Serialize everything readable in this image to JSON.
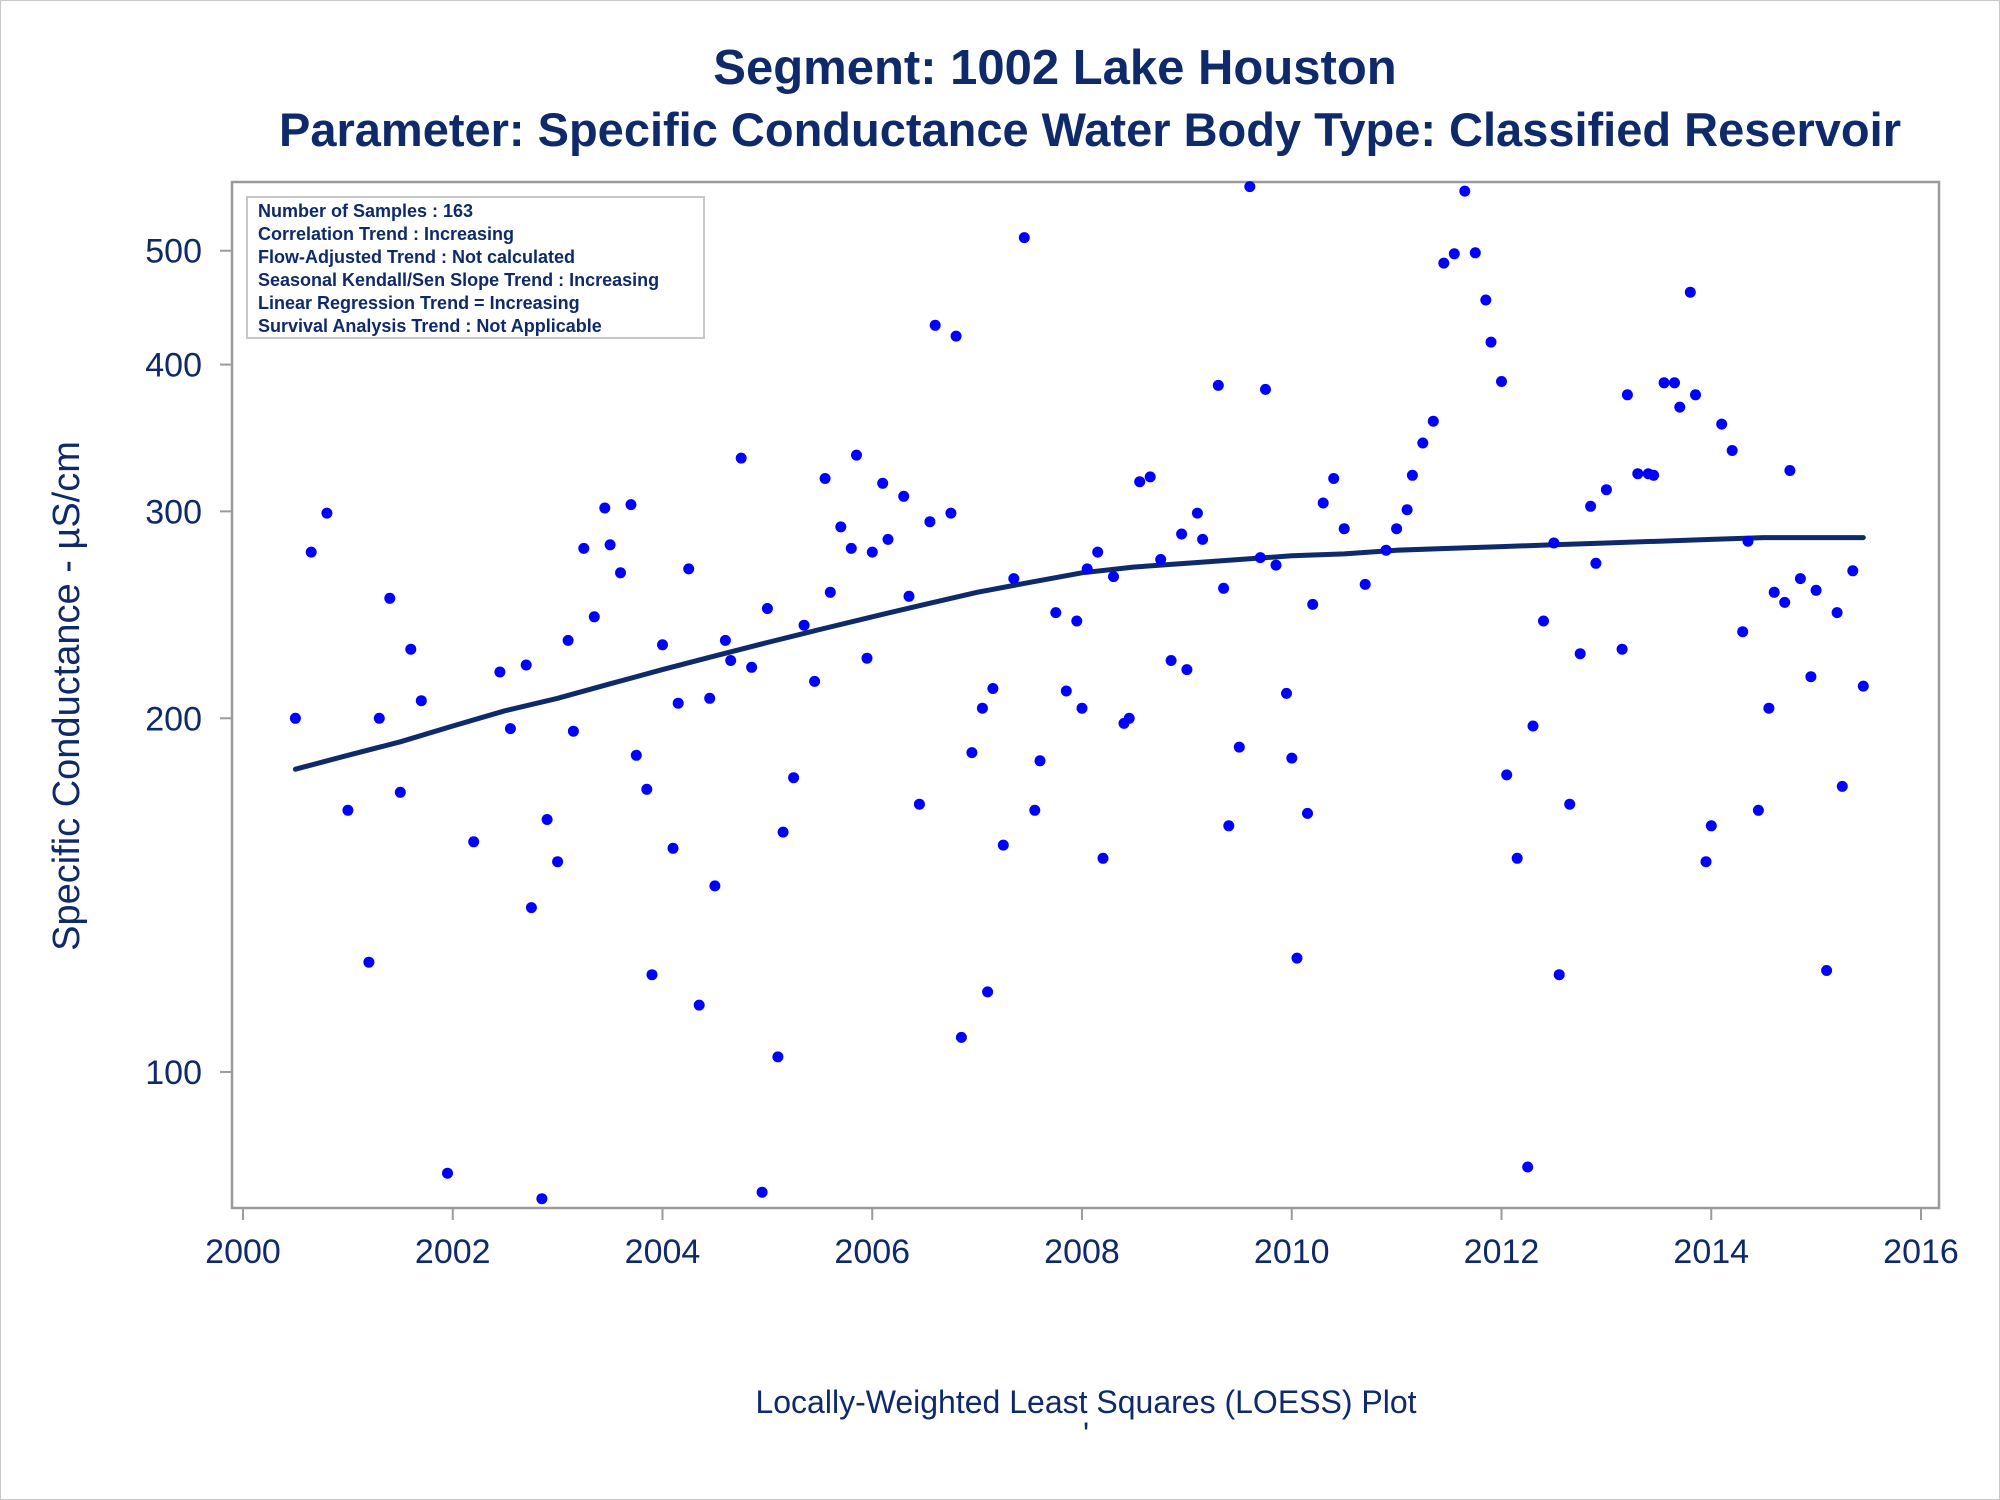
{
  "chart_data": {
    "type": "scatter",
    "title": "Segment: 1002  Lake Houston",
    "subtitle": "Parameter: Specific Conductance   Water Body Type: Classified Reservoir",
    "ylabel": "Specific Conductance -  µS/cm",
    "xlabel": "",
    "footnote": "Locally-Weighted Least Squares (LOESS) Plot",
    "footnote_mark": "'",
    "x_scale": "linear",
    "y_scale": "log",
    "xlim": [
      2000,
      2016
    ],
    "ylim": [
      76,
      580
    ],
    "x_ticks": [
      2000,
      2002,
      2004,
      2006,
      2008,
      2010,
      2012,
      2014,
      2016
    ],
    "y_ticks": [
      100,
      200,
      300,
      400,
      500
    ],
    "grid": false,
    "colors": {
      "points": "#0000ff",
      "loess": "#0f2a6b",
      "text": "#0f2a6b",
      "frame": "#9a9a9a"
    },
    "stats_box": [
      "Number of Samples : 163",
      "Correlation Trend : Increasing",
      "Flow-Adjusted Trend : Not calculated",
      "Seasonal Kendall/Sen Slope Trend : Increasing",
      "Linear Regression Trend = Increasing",
      "Survival Analysis Trend : Not Applicable"
    ],
    "series": [
      {
        "type": "scatter",
        "points": [
          [
            2000.5,
            200
          ],
          [
            2000.65,
            277
          ],
          [
            2000.8,
            299
          ],
          [
            2001.0,
            167
          ],
          [
            2001.2,
            124
          ],
          [
            2001.3,
            200
          ],
          [
            2001.4,
            253
          ],
          [
            2001.5,
            173
          ],
          [
            2001.6,
            229
          ],
          [
            2001.7,
            207
          ],
          [
            2001.95,
            82
          ],
          [
            2002.2,
            157
          ],
          [
            2002.45,
            219
          ],
          [
            2002.55,
            196
          ],
          [
            2002.7,
            222
          ],
          [
            2002.75,
            138
          ],
          [
            2002.85,
            78
          ],
          [
            2002.9,
            164
          ],
          [
            2003.0,
            151
          ],
          [
            2003.1,
            233
          ],
          [
            2003.15,
            195
          ],
          [
            2003.25,
            279
          ],
          [
            2003.35,
            244
          ],
          [
            2003.45,
            302
          ],
          [
            2003.5,
            281
          ],
          [
            2003.6,
            266
          ],
          [
            2003.7,
            304
          ],
          [
            2003.75,
            186
          ],
          [
            2003.85,
            174
          ],
          [
            2003.9,
            121
          ],
          [
            2004.0,
            231
          ],
          [
            2004.1,
            155
          ],
          [
            2004.15,
            206
          ],
          [
            2004.25,
            268
          ],
          [
            2004.35,
            114
          ],
          [
            2004.45,
            208
          ],
          [
            2004.5,
            144
          ],
          [
            2004.6,
            233
          ],
          [
            2004.65,
            224
          ],
          [
            2004.75,
            333
          ],
          [
            2004.85,
            221
          ],
          [
            2004.95,
            79
          ],
          [
            2005.0,
            248
          ],
          [
            2005.1,
            103
          ],
          [
            2005.15,
            160
          ],
          [
            2005.25,
            178
          ],
          [
            2005.35,
            240
          ],
          [
            2005.45,
            215
          ],
          [
            2005.55,
            320
          ],
          [
            2005.6,
            256
          ],
          [
            2005.7,
            291
          ],
          [
            2005.8,
            279
          ],
          [
            2005.85,
            335
          ],
          [
            2005.95,
            225
          ],
          [
            2006.0,
            277
          ],
          [
            2006.1,
            317
          ],
          [
            2006.15,
            284
          ],
          [
            2006.3,
            309
          ],
          [
            2006.35,
            254
          ],
          [
            2006.45,
            169
          ],
          [
            2006.55,
            294
          ],
          [
            2006.6,
            432
          ],
          [
            2006.75,
            299
          ],
          [
            2006.8,
            423
          ],
          [
            2006.85,
            107
          ],
          [
            2006.95,
            187
          ],
          [
            2007.05,
            204
          ],
          [
            2007.1,
            117
          ],
          [
            2007.15,
            212
          ],
          [
            2007.25,
            156
          ],
          [
            2007.35,
            263
          ],
          [
            2007.45,
            513
          ],
          [
            2007.55,
            167
          ],
          [
            2007.6,
            184
          ],
          [
            2007.75,
            246
          ],
          [
            2007.85,
            211
          ],
          [
            2007.95,
            242
          ],
          [
            2008.0,
            204
          ],
          [
            2008.05,
            268
          ],
          [
            2008.15,
            277
          ],
          [
            2008.2,
            152
          ],
          [
            2008.3,
            264
          ],
          [
            2008.4,
            198
          ],
          [
            2008.45,
            200
          ],
          [
            2008.55,
            318
          ],
          [
            2008.65,
            321
          ],
          [
            2008.75,
            273
          ],
          [
            2008.85,
            224
          ],
          [
            2008.95,
            287
          ],
          [
            2009.0,
            220
          ],
          [
            2009.1,
            299
          ],
          [
            2009.15,
            284
          ],
          [
            2009.3,
            384
          ],
          [
            2009.35,
            258
          ],
          [
            2009.4,
            162
          ],
          [
            2009.5,
            189
          ],
          [
            2009.6,
            567
          ],
          [
            2009.7,
            274
          ],
          [
            2009.75,
            381
          ],
          [
            2009.85,
            270
          ],
          [
            2009.95,
            210
          ],
          [
            2010.0,
            185
          ],
          [
            2010.05,
            125
          ],
          [
            2010.15,
            166
          ],
          [
            2010.2,
            250
          ],
          [
            2010.3,
            305
          ],
          [
            2010.4,
            320
          ],
          [
            2010.5,
            290
          ],
          [
            2010.7,
            260
          ],
          [
            2010.9,
            278
          ],
          [
            2011.0,
            290
          ],
          [
            2011.1,
            301
          ],
          [
            2011.15,
            322
          ],
          [
            2011.25,
            343
          ],
          [
            2011.35,
            358
          ],
          [
            2011.45,
            488
          ],
          [
            2011.55,
            497
          ],
          [
            2011.65,
            562
          ],
          [
            2011.75,
            498
          ],
          [
            2011.85,
            454
          ],
          [
            2011.9,
            418
          ],
          [
            2012.0,
            387
          ],
          [
            2012.05,
            179
          ],
          [
            2012.15,
            152
          ],
          [
            2012.25,
            83
          ],
          [
            2012.3,
            197
          ],
          [
            2012.4,
            242
          ],
          [
            2012.5,
            282
          ],
          [
            2012.55,
            121
          ],
          [
            2012.65,
            169
          ],
          [
            2012.75,
            227
          ],
          [
            2012.85,
            303
          ],
          [
            2012.9,
            271
          ],
          [
            2013.0,
            313
          ],
          [
            2013.15,
            229
          ],
          [
            2013.2,
            377
          ],
          [
            2013.3,
            323
          ],
          [
            2013.4,
            323
          ],
          [
            2013.45,
            322
          ],
          [
            2013.55,
            386
          ],
          [
            2013.65,
            386
          ],
          [
            2013.7,
            368
          ],
          [
            2013.8,
            461
          ],
          [
            2013.85,
            377
          ],
          [
            2013.95,
            151
          ],
          [
            2014.0,
            162
          ],
          [
            2014.1,
            356
          ],
          [
            2014.2,
            338
          ],
          [
            2014.3,
            237
          ],
          [
            2014.35,
            283
          ],
          [
            2014.45,
            167
          ],
          [
            2014.55,
            204
          ],
          [
            2014.6,
            256
          ],
          [
            2014.7,
            251
          ],
          [
            2014.75,
            325
          ],
          [
            2014.85,
            263
          ],
          [
            2014.95,
            217
          ],
          [
            2015.0,
            257
          ],
          [
            2015.1,
            122
          ],
          [
            2015.2,
            246
          ],
          [
            2015.25,
            175
          ],
          [
            2015.35,
            267
          ],
          [
            2015.45,
            213
          ]
        ]
      },
      {
        "type": "line",
        "points": [
          [
            2000.5,
            181
          ],
          [
            2001.0,
            186
          ],
          [
            2001.5,
            191
          ],
          [
            2002.0,
            197
          ],
          [
            2002.5,
            203
          ],
          [
            2003.0,
            208
          ],
          [
            2003.5,
            214
          ],
          [
            2004.0,
            220
          ],
          [
            2004.5,
            226
          ],
          [
            2005.0,
            232
          ],
          [
            2005.5,
            238
          ],
          [
            2006.0,
            244
          ],
          [
            2006.5,
            250
          ],
          [
            2007.0,
            256
          ],
          [
            2007.5,
            261
          ],
          [
            2008.0,
            266
          ],
          [
            2008.5,
            269
          ],
          [
            2009.0,
            271
          ],
          [
            2009.5,
            273
          ],
          [
            2010.0,
            275
          ],
          [
            2010.5,
            276
          ],
          [
            2011.0,
            278
          ],
          [
            2011.5,
            279
          ],
          [
            2012.0,
            280
          ],
          [
            2012.5,
            281
          ],
          [
            2013.0,
            282
          ],
          [
            2013.5,
            283
          ],
          [
            2014.0,
            284
          ],
          [
            2014.5,
            285
          ],
          [
            2015.0,
            285
          ],
          [
            2015.45,
            285
          ]
        ]
      }
    ]
  }
}
